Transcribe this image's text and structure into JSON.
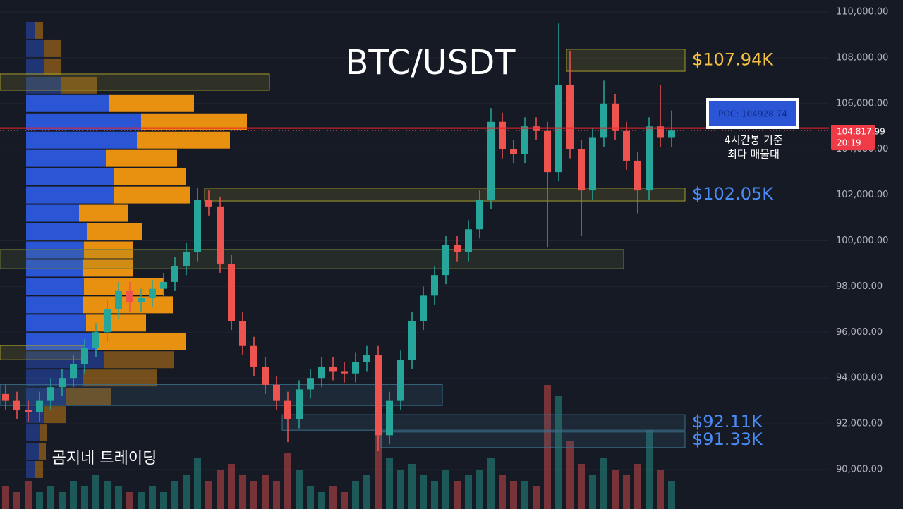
{
  "chart_data": {
    "type": "candlestick",
    "title": "BTC/USDT",
    "watermark": "곰지네 트레이딩",
    "up_color": "#26a69a",
    "down_color": "#ef5350",
    "ylim": [
      88274,
      110524
    ],
    "yticks": [
      {
        "value": 90000,
        "label": "90,000.00"
      },
      {
        "value": 92000,
        "label": "92,000.00"
      },
      {
        "value": 94000,
        "label": "94,000.00"
      },
      {
        "value": 96000,
        "label": "96,000.00"
      },
      {
        "value": 98000,
        "label": "98,000.00"
      },
      {
        "value": 100000,
        "label": "100,000.00"
      },
      {
        "value": 102000,
        "label": "102,000.00"
      },
      {
        "value": 104000,
        "label": "104,000.00"
      },
      {
        "value": 106000,
        "label": "106,000.00"
      },
      {
        "value": 108000,
        "label": "108,000.00"
      },
      {
        "value": 110000,
        "label": "110,000.00"
      }
    ],
    "open": [
      93300,
      93000,
      92600,
      92500,
      93000,
      93600,
      94000,
      94600,
      95300,
      96000,
      97000,
      97800,
      97300,
      97500,
      97900,
      98200,
      98900,
      99500,
      101800,
      101500,
      99000,
      96500,
      95400,
      94500,
      93700,
      93000,
      92200,
      93500,
      94000,
      94500,
      94300,
      94200,
      94700,
      95000,
      91500,
      93000,
      94800,
      96500,
      97600,
      98500,
      99800,
      99500,
      100500,
      101800,
      105200,
      104000,
      103800,
      105000,
      104800,
      103000,
      106800,
      104000,
      102200,
      104500,
      106000,
      104800,
      103500,
      102200,
      105000,
      104500
    ],
    "high": [
      93700,
      93400,
      93000,
      93400,
      94000,
      94400,
      95000,
      95700,
      96400,
      97400,
      98200,
      98200,
      97900,
      98300,
      98600,
      99300,
      99900,
      102300,
      102200,
      101900,
      99400,
      96900,
      95800,
      94900,
      94100,
      93400,
      93900,
      94400,
      94900,
      94900,
      94700,
      95100,
      95400,
      95400,
      93400,
      95200,
      96900,
      98000,
      98900,
      100200,
      100200,
      100900,
      102200,
      105800,
      105600,
      104400,
      105400,
      105400,
      105200,
      109500,
      108300,
      104400,
      104900,
      107000,
      106400,
      105200,
      103900,
      105400,
      106800,
      105700
    ],
    "low": [
      92600,
      92200,
      92100,
      92100,
      92600,
      93200,
      93600,
      94200,
      94900,
      95600,
      96600,
      96900,
      96900,
      97100,
      97500,
      97800,
      98500,
      99100,
      101100,
      98600,
      96100,
      95000,
      94100,
      93300,
      92600,
      91200,
      91800,
      93100,
      93600,
      93900,
      93800,
      93800,
      94300,
      90800,
      91100,
      92600,
      94400,
      96100,
      97200,
      98100,
      99100,
      99100,
      100100,
      101400,
      103600,
      103400,
      103400,
      104400,
      99700,
      102600,
      103600,
      100200,
      101800,
      104100,
      104400,
      103100,
      101200,
      101800,
      104100,
      104100
    ],
    "close": [
      93000,
      92600,
      92500,
      93000,
      93600,
      94000,
      94600,
      95300,
      96000,
      97000,
      97800,
      97300,
      97500,
      97900,
      98200,
      98900,
      99500,
      101800,
      101500,
      99000,
      96500,
      95400,
      94500,
      93700,
      93000,
      92200,
      93500,
      94000,
      94500,
      94300,
      94200,
      94700,
      95000,
      91500,
      93000,
      94800,
      96500,
      97600,
      98500,
      99800,
      99500,
      100500,
      101800,
      105200,
      104000,
      103800,
      105000,
      104800,
      103000,
      106800,
      104000,
      102200,
      104500,
      106000,
      104800,
      103500,
      102200,
      105000,
      104500,
      104818
    ],
    "volume": [
      4,
      3,
      5,
      3,
      4,
      3,
      5,
      4,
      6,
      5,
      4,
      3,
      3,
      4,
      3,
      5,
      6,
      9,
      5,
      7,
      8,
      6,
      5,
      6,
      5,
      10,
      7,
      4,
      3,
      4,
      3,
      5,
      6,
      18,
      9,
      7,
      8,
      6,
      5,
      7,
      5,
      6,
      7,
      9,
      6,
      5,
      5,
      4,
      22,
      20,
      12,
      8,
      6,
      9,
      7,
      6,
      8,
      14,
      7,
      5
    ],
    "vlim": [
      0,
      30
    ],
    "profile": {
      "bins": [
        109600,
        108800,
        108000,
        107200,
        106400,
        105600,
        104800,
        104000,
        103200,
        102400,
        101600,
        100800,
        100000,
        99200,
        98400,
        97600,
        96800,
        96000,
        95200,
        94400,
        93600,
        92800,
        92000,
        91200,
        90400,
        89600
      ],
      "buy": [
        12,
        25,
        25,
        50,
        118,
        163,
        157,
        113,
        125,
        125,
        75,
        87,
        82,
        80,
        82,
        80,
        85,
        100,
        110,
        80,
        56,
        26,
        20,
        18,
        12
      ],
      "sell": [
        12,
        25,
        25,
        50,
        120,
        150,
        132,
        101,
        102,
        107,
        70,
        77,
        70,
        72,
        113,
        128,
        85,
        126,
        100,
        105,
        64,
        30,
        10,
        10,
        12
      ],
      "buy_color": "#2a56d6",
      "sell_color": "#e8900f",
      "value_area": [
        95600,
        106400
      ]
    },
    "zones": [
      {
        "low": 107410,
        "high": 108370,
        "color": "#a39a2c",
        "label": "$107.94K",
        "label_color": "#f5c242"
      },
      {
        "low": 106580,
        "high": 107290,
        "color": "#a39a2c"
      },
      {
        "low": 101740,
        "high": 102300,
        "color": "#a39a2c",
        "label": "$102.05K",
        "label_color": "#4a8cf7"
      },
      {
        "low": 98780,
        "high": 99620,
        "color": "#6b7a3a"
      },
      {
        "low": 94800,
        "high": 95420,
        "color": "#a39a2c"
      },
      {
        "low": 92800,
        "high": 93720,
        "color": "#3b6f8a"
      },
      {
        "low": 91720,
        "high": 92400,
        "color": "#3b6f8a",
        "label": "$92.11K",
        "label_color": "#4a8cf7"
      },
      {
        "low": 90960,
        "high": 91640,
        "color": "#3b6f8a",
        "label": "$91.33K",
        "label_color": "#4a8cf7"
      }
    ],
    "poc": {
      "value": 104928.74,
      "label": "POC: 104928.74"
    },
    "poc_note": [
      "4시간봉 기준",
      "최다 매물대"
    ],
    "price": {
      "value": 104817.99,
      "label": "104,817.99"
    },
    "countdown": "20:19"
  }
}
